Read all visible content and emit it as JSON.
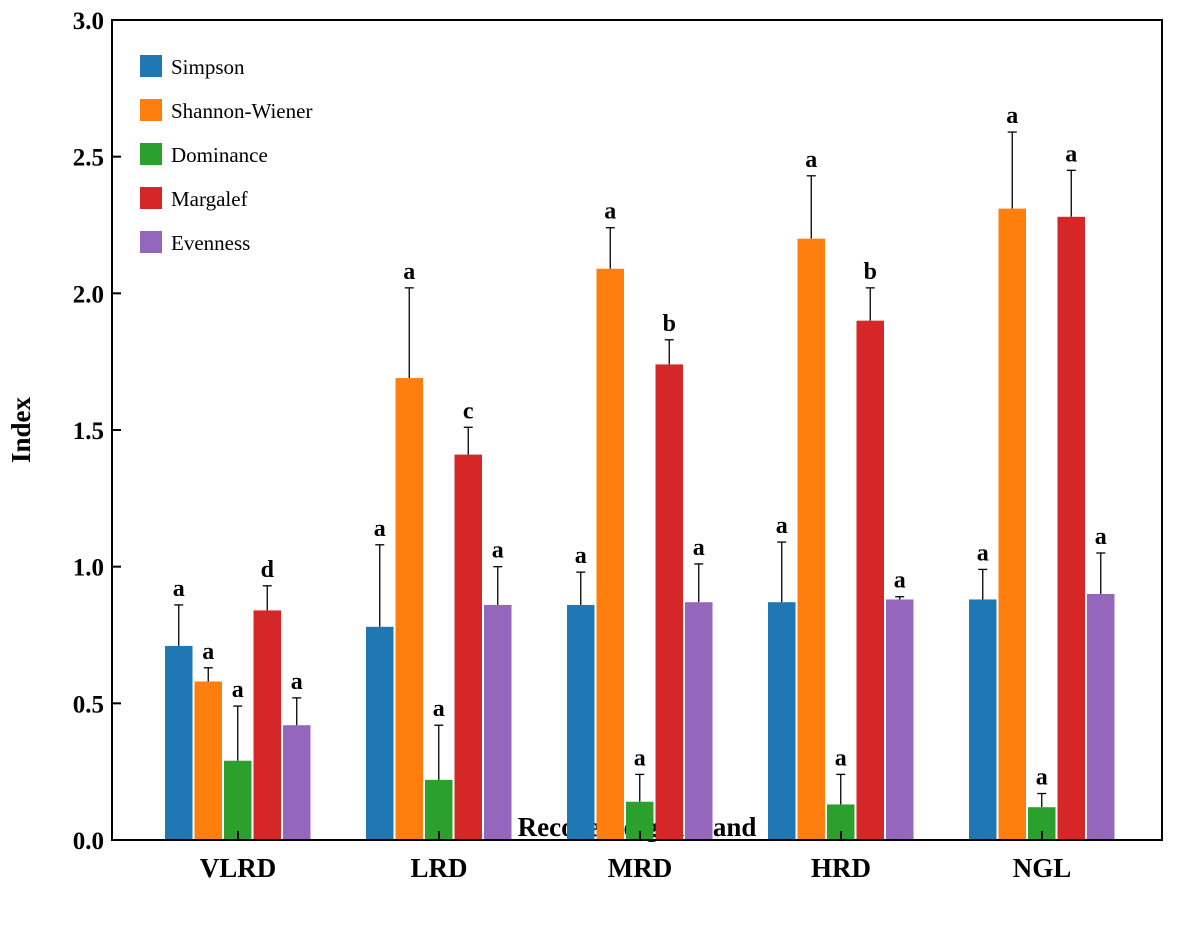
{
  "chart_data": {
    "type": "bar",
    "title": "",
    "xlabel": "Recovered grassland",
    "ylabel": "Index",
    "ylim": [
      0,
      3.0
    ],
    "yticks": [
      "0.0",
      "0.5",
      "1.0",
      "1.5",
      "2.0",
      "2.5",
      "3.0"
    ],
    "grid": false,
    "legend_position": "top-left",
    "categories": [
      "VLRD",
      "LRD",
      "MRD",
      "HRD",
      "NGL"
    ],
    "series": [
      {
        "name": "Simpson",
        "color": "#1f77b4",
        "values": [
          0.71,
          0.78,
          0.86,
          0.87,
          0.88
        ],
        "errors": [
          0.15,
          0.3,
          0.12,
          0.22,
          0.11
        ],
        "labels": [
          "a",
          "a",
          "a",
          "a",
          "a"
        ]
      },
      {
        "name": "Shannon-Wiener",
        "color": "#ff7f0e",
        "values": [
          0.58,
          1.69,
          2.09,
          2.2,
          2.31
        ],
        "errors": [
          0.05,
          0.33,
          0.15,
          0.23,
          0.28
        ],
        "labels": [
          "a",
          "a",
          "a",
          "a",
          "a"
        ]
      },
      {
        "name": "Dominance",
        "color": "#2ca02c",
        "values": [
          0.29,
          0.22,
          0.14,
          0.13,
          0.12
        ],
        "errors": [
          0.2,
          0.2,
          0.1,
          0.11,
          0.05
        ],
        "labels": [
          "a",
          "a",
          "a",
          "a",
          "a"
        ]
      },
      {
        "name": "Margalef",
        "color": "#d62728",
        "values": [
          0.84,
          1.41,
          1.74,
          1.9,
          2.28
        ],
        "errors": [
          0.09,
          0.1,
          0.09,
          0.12,
          0.17
        ],
        "labels": [
          "d",
          "c",
          "b",
          "b",
          "a"
        ]
      },
      {
        "name": "Evenness",
        "color": "#9467bd",
        "values": [
          0.42,
          0.86,
          0.87,
          0.88,
          0.9
        ],
        "errors": [
          0.1,
          0.14,
          0.14,
          0.01,
          0.15
        ],
        "labels": [
          "a",
          "a",
          "a",
          "a",
          "a"
        ]
      }
    ]
  }
}
